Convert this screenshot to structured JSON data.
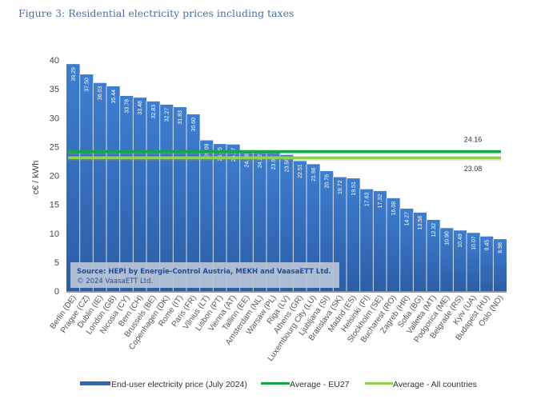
{
  "figure_title": "Figure 3: Residential electricity prices including taxes",
  "source_box": {
    "line1": "Source: HEPI by Energie-Control Austria, MEKH and VaasaETT Ltd.",
    "line2": "© 2024 VaasaETT Ltd."
  },
  "colors": {
    "bar": "#3a78c9",
    "bar_dark": "#2d5fa6",
    "eu27_line": "#12a84a",
    "all_line": "#8fd14f"
  },
  "chart_data": {
    "type": "bar",
    "title": "Figure 3: Residential electricity prices including taxes",
    "xlabel": "",
    "ylabel": "c€ / kWh",
    "ylim": [
      0,
      40
    ],
    "yticks": [
      0,
      5,
      10,
      15,
      20,
      25,
      30,
      35,
      40
    ],
    "grid": false,
    "legend_position": "bottom",
    "categories": [
      "Berlin (DE)",
      "Prague (CZ)",
      "Dublin (IE)",
      "London (GB)",
      "Nicosia (CY)",
      "Bern (CH)",
      "Brussels (BE)",
      "Copenhagen (DK)",
      "Rome (IT)",
      "Paris (FR)",
      "Vilnius (LT)",
      "Lisbon (PT)",
      "Vienna (AT)",
      "Tallinn (EE)",
      "Amsterdam (NL)",
      "Warsaw (PL)",
      "Riga (LV)",
      "Athens (GR)",
      "Luxembourg City (LU)",
      "Ljubljana (SI)",
      "Bratislava (SK)",
      "Madrid (ES)",
      "Helsinki (FI)",
      "Stockholm (SE)",
      "Bucharest (RO)",
      "Zagreb (HR)",
      "Sofia (BG)",
      "Valletta (MT)",
      "Podgorica (ME)",
      "Belgrade (RS)",
      "Kyiv (UA)",
      "Budapest (HU)",
      "Oslo (NO)"
    ],
    "series": [
      {
        "name": "End-user electricity price (July 2024)",
        "type": "bar",
        "values": [
          39.29,
          37.5,
          36.03,
          35.44,
          33.78,
          33.48,
          32.83,
          32.27,
          31.83,
          30.6,
          26.09,
          25.45,
          25.37,
          24.38,
          24.27,
          23.97,
          23.56,
          22.51,
          21.96,
          20.76,
          19.72,
          19.51,
          17.63,
          17.32,
          16.08,
          14.27,
          13.58,
          12.32,
          10.9,
          10.49,
          10.07,
          9.45,
          8.98
        ],
        "labels": [
          "39.29",
          "37.50",
          "36.03",
          "35.44",
          "33.78",
          "33.48",
          "32.83",
          "32.27",
          "31.83",
          "30.60",
          "26.09",
          "25.45",
          "25.37",
          "24.38",
          "24.27",
          "23.97",
          "23.56",
          "22.51",
          "21.96",
          "20.76",
          "19.72",
          "19.51",
          "17.63",
          "17.32",
          "16.08",
          "14.27",
          "13.58",
          "12.32",
          "10.90",
          "10.49",
          "10.07",
          "9.45",
          "8.98"
        ]
      },
      {
        "name": "Average - EU27",
        "type": "line",
        "value": 24.16,
        "label": "24.16"
      },
      {
        "name": "Average - All countries",
        "type": "line",
        "value": 23.08,
        "label": "23.08"
      }
    ]
  }
}
